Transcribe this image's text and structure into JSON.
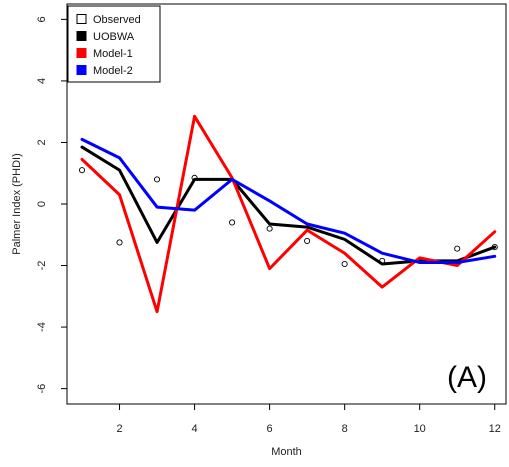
{
  "chart_data": {
    "type": "line",
    "xlabel": "Month",
    "ylabel": "Palmer Index (PHDI)",
    "xlim": [
      0.6,
      12.3
    ],
    "ylim": [
      -6.5,
      6.5
    ],
    "x_ticks": [
      2,
      4,
      6,
      8,
      10,
      12
    ],
    "y_ticks": [
      -6,
      -4,
      -2,
      0,
      2,
      4,
      6
    ],
    "grid": false,
    "legend_position": "top-left",
    "annotation": "(A)",
    "x": [
      1,
      2,
      3,
      4,
      5,
      6,
      7,
      8,
      9,
      10,
      11,
      12
    ],
    "series": [
      {
        "name": "Observed",
        "style": "points",
        "color": "#000000",
        "values": [
          1.1,
          -1.25,
          0.8,
          0.85,
          -0.6,
          -0.8,
          -1.2,
          -1.95,
          -1.85,
          -1.85,
          -1.45,
          -1.4
        ]
      },
      {
        "name": "UOBWA",
        "style": "line",
        "color": "#000000",
        "values": [
          1.85,
          1.1,
          -1.25,
          0.8,
          0.8,
          -0.65,
          -0.75,
          -1.15,
          -1.95,
          -1.85,
          -1.85,
          -1.4
        ]
      },
      {
        "name": "Model-1",
        "style": "line",
        "color": "#ff0000",
        "values": [
          1.45,
          0.3,
          -3.5,
          2.85,
          0.85,
          -2.1,
          -0.85,
          -1.6,
          -2.7,
          -1.75,
          -2.0,
          -0.9
        ]
      },
      {
        "name": "Model-2",
        "style": "line",
        "color": "#0000ff",
        "values": [
          2.1,
          1.5,
          -0.1,
          -0.2,
          0.8,
          0.1,
          -0.65,
          -0.95,
          -1.6,
          -1.9,
          -1.9,
          -1.7
        ]
      }
    ]
  }
}
